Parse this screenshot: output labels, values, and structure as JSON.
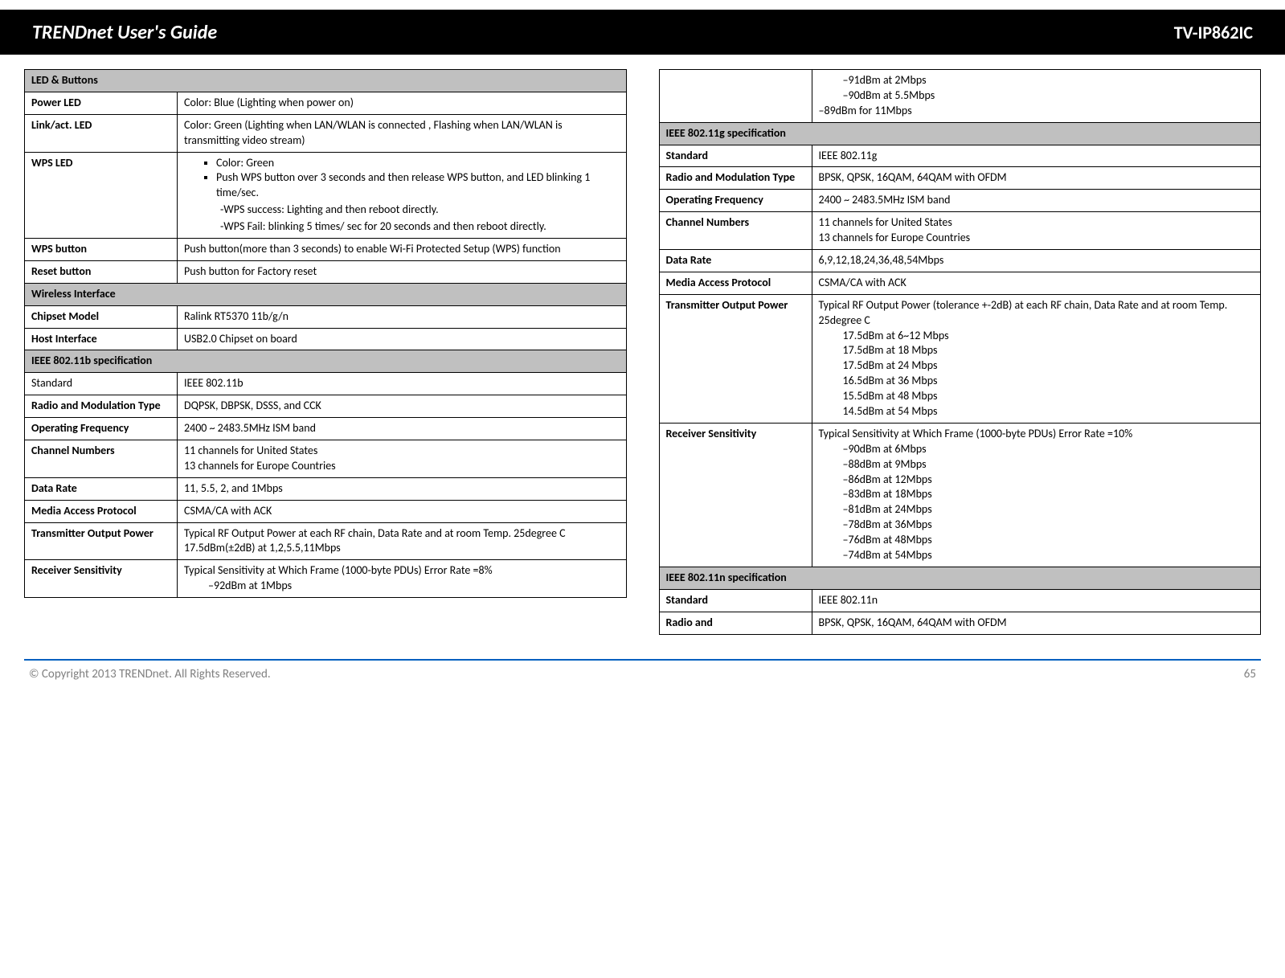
{
  "header": {
    "title": "TRENDnet User's Guide",
    "model": "TV-IP862IC"
  },
  "footer": {
    "copyright": "© Copyright 2013 TRENDnet. All Rights Reserved.",
    "page": "65"
  },
  "left": {
    "sec_led_buttons": "LED & Buttons",
    "power_led_k": "Power LED",
    "power_led_v": "Color: Blue (Lighting when power on)",
    "link_led_k": "Link/act. LED",
    "link_led_v": "Color: Green (Lighting when LAN/WLAN is connected , Flashing when LAN/WLAN is transmitting video stream)",
    "wps_led_k": "WPS LED",
    "wps_led_b1": "Color: Green",
    "wps_led_b2": "Push WPS button over 3 seconds and then release WPS button, and LED blinking 1 time/sec.",
    "wps_led_s1": "-WPS success: Lighting and then reboot directly.",
    "wps_led_s2": "-WPS Fail: blinking 5 times/ sec for 20 seconds and then reboot directly.",
    "wps_btn_k": "WPS button",
    "wps_btn_v": "Push button(more than 3 seconds) to enable Wi-Fi Protected Setup (WPS) function",
    "reset_k": "Reset button",
    "reset_v": "Push button for Factory reset",
    "sec_wireless": "Wireless Interface",
    "chipset_k": "Chipset Model",
    "chipset_v": "Ralink RT5370 11b/g/n",
    "host_k": "Host Interface",
    "host_v": "USB2.0 Chipset on board",
    "sec_11b": "IEEE 802.11b specification",
    "b_std_k": "Standard",
    "b_std_v": "IEEE 802.11b",
    "b_mod_k": "Radio and Modulation Type",
    "b_mod_v": "DQPSK, DBPSK, DSSS, and CCK",
    "b_freq_k": "Operating Frequency",
    "b_freq_v": "2400 ~ 2483.5MHz ISM band",
    "b_ch_k": "Channel Numbers",
    "b_ch_v1": "11 channels for United States",
    "b_ch_v2": "13 channels for Europe Countries",
    "b_rate_k": "Data Rate",
    "b_rate_v": "11, 5.5, 2, and 1Mbps",
    "b_mac_k": "Media Access Protocol",
    "b_mac_v": "CSMA/CA with ACK",
    "b_tx_k": "Transmitter Output Power",
    "b_tx_v1": "Typical RF Output Power at each RF chain, Data Rate and at room Temp. 25degree C",
    "b_tx_v2": "17.5dBm(±2dB) at 1,2,5.5,11Mbps",
    "b_rx_k": "Receiver Sensitivity",
    "b_rx_v1": "Typical Sensitivity at Which Frame (1000-byte PDUs) Error Rate =8%",
    "b_rx_v2": "–92dBm at 1Mbps"
  },
  "right": {
    "cont_v1": "–91dBm at 2Mbps",
    "cont_v2": "–90dBm at 5.5Mbps",
    "cont_v3": "–89dBm for 11Mbps",
    "sec_11g": "IEEE 802.11g specification",
    "g_std_k": "Standard",
    "g_std_v": "IEEE 802.11g",
    "g_mod_k": "Radio and Modulation Type",
    "g_mod_v": "BPSK, QPSK, 16QAM, 64QAM with OFDM",
    "g_freq_k": "Operating Frequency",
    "g_freq_v": "2400 ~ 2483.5MHz ISM band",
    "g_ch_k": "Channel Numbers",
    "g_ch_v1": "11 channels for United States",
    "g_ch_v2": "13 channels for Europe Countries",
    "g_rate_k": "Data Rate",
    "g_rate_v": "6,9,12,18,24,36,48,54Mbps",
    "g_mac_k": "Media Access Protocol",
    "g_mac_v": "CSMA/CA with ACK",
    "g_tx_k": "Transmitter Output Power",
    "g_tx_v0": "Typical RF Output Power (tolerance +-2dB) at each RF chain, Data Rate and at room Temp. 25degree C",
    "g_tx_v1": "17.5dBm at 6~12 Mbps",
    "g_tx_v2": "17.5dBm at 18 Mbps",
    "g_tx_v3": "17.5dBm at 24 Mbps",
    "g_tx_v4": "16.5dBm at 36 Mbps",
    "g_tx_v5": "15.5dBm at 48 Mbps",
    "g_tx_v6": "14.5dBm at 54 Mbps",
    "g_rx_k": "Receiver Sensitivity",
    "g_rx_v0": "Typical Sensitivity at Which Frame (1000-byte PDUs) Error Rate =10%",
    "g_rx_v1": "–90dBm at 6Mbps",
    "g_rx_v2": "–88dBm at 9Mbps",
    "g_rx_v3": "–86dBm at 12Mbps",
    "g_rx_v4": "–83dBm at 18Mbps",
    "g_rx_v5": "–81dBm at 24Mbps",
    "g_rx_v6": "–78dBm at 36Mbps",
    "g_rx_v7": "–76dBm at 48Mbps",
    "g_rx_v8": "–74dBm at 54Mbps",
    "sec_11n": "IEEE 802.11n specification",
    "n_std_k": "Standard",
    "n_std_v": "IEEE 802.11n",
    "n_mod_k": "Radio and",
    "n_mod_v": "BPSK, QPSK, 16QAM, 64QAM with OFDM"
  }
}
